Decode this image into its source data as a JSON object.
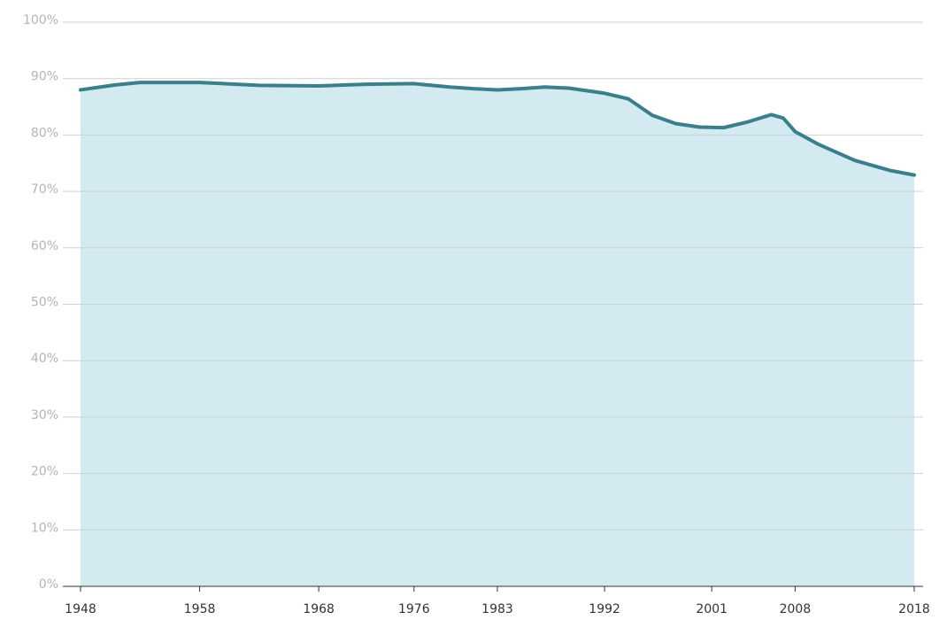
{
  "chart_data": {
    "type": "area",
    "x": [
      1948,
      1951,
      1953,
      1958,
      1960,
      1963,
      1968,
      1972,
      1976,
      1977,
      1979,
      1981,
      1983,
      1985,
      1987,
      1989,
      1992,
      1994,
      1996,
      1998,
      2000,
      2002,
      2004,
      2006,
      2007,
      2008,
      2010,
      2013,
      2016,
      2018
    ],
    "values": [
      88.0,
      88.9,
      89.3,
      89.3,
      89.1,
      88.8,
      88.7,
      89.0,
      89.1,
      88.9,
      88.5,
      88.2,
      88.0,
      88.2,
      88.5,
      88.3,
      87.4,
      86.4,
      83.5,
      82.0,
      81.4,
      81.3,
      82.3,
      83.6,
      83.0,
      80.6,
      78.3,
      75.5,
      73.7,
      72.9
    ],
    "color": "#3a7f8b",
    "fill_color": "#d2eaf0",
    "xlim": [
      1948,
      2018
    ],
    "xticks": [
      1948,
      1958,
      1968,
      1976,
      1983,
      1992,
      2001,
      2008,
      2018
    ],
    "ylim": [
      0,
      100
    ],
    "yticks": [
      {
        "value": 0,
        "label": "0%"
      },
      {
        "value": 10,
        "label": "10%"
      },
      {
        "value": 20,
        "label": "20%"
      },
      {
        "value": 30,
        "label": "30%"
      },
      {
        "value": 40,
        "label": "40%"
      },
      {
        "value": 50,
        "label": "50%"
      },
      {
        "value": 60,
        "label": "60%"
      },
      {
        "value": 70,
        "label": "70%"
      },
      {
        "value": 80,
        "label": "80%"
      },
      {
        "value": 90,
        "label": "90%"
      },
      {
        "value": 100,
        "label": "100%"
      }
    ],
    "grid": true
  }
}
